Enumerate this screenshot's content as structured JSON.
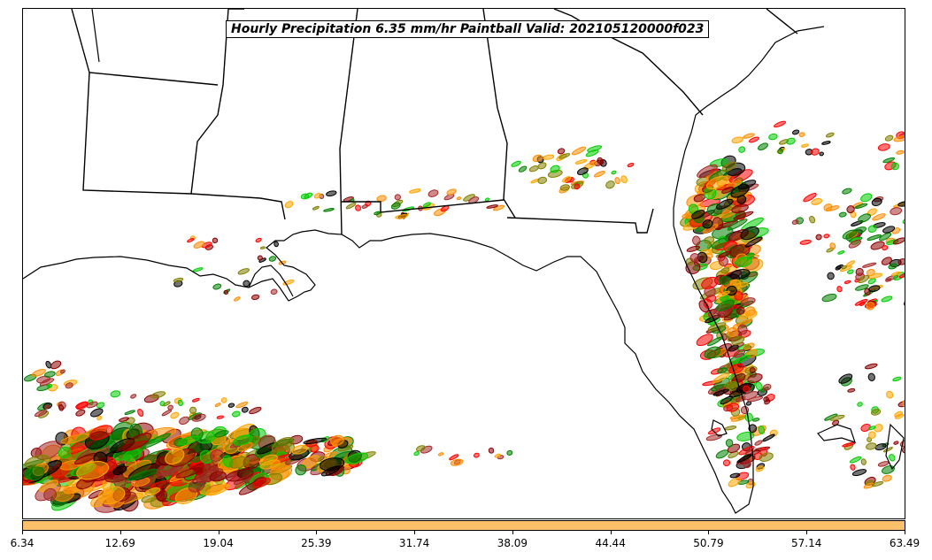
{
  "title": "Hourly Precipitation 6.35 mm/hr Paintball Valid: 202105120000f023",
  "colorbar": {
    "color": "#fdc06a",
    "min": 6.34,
    "max": 63.49,
    "ticks": [
      "6.34",
      "12.69",
      "19.04",
      "25.39",
      "31.74",
      "38.09",
      "44.44",
      "50.79",
      "57.14",
      "63.49"
    ]
  },
  "map": {
    "region": "Gulf Coast / Florida",
    "layers": [
      "coastlines",
      "state-borders",
      "paintball-precip-contours"
    ],
    "paintball_colors": [
      "#ff0000",
      "#ff8c00",
      "#ffa500",
      "#008000",
      "#00cc00",
      "#8b0000",
      "#808000",
      "#000000",
      "#a52a2a"
    ]
  }
}
